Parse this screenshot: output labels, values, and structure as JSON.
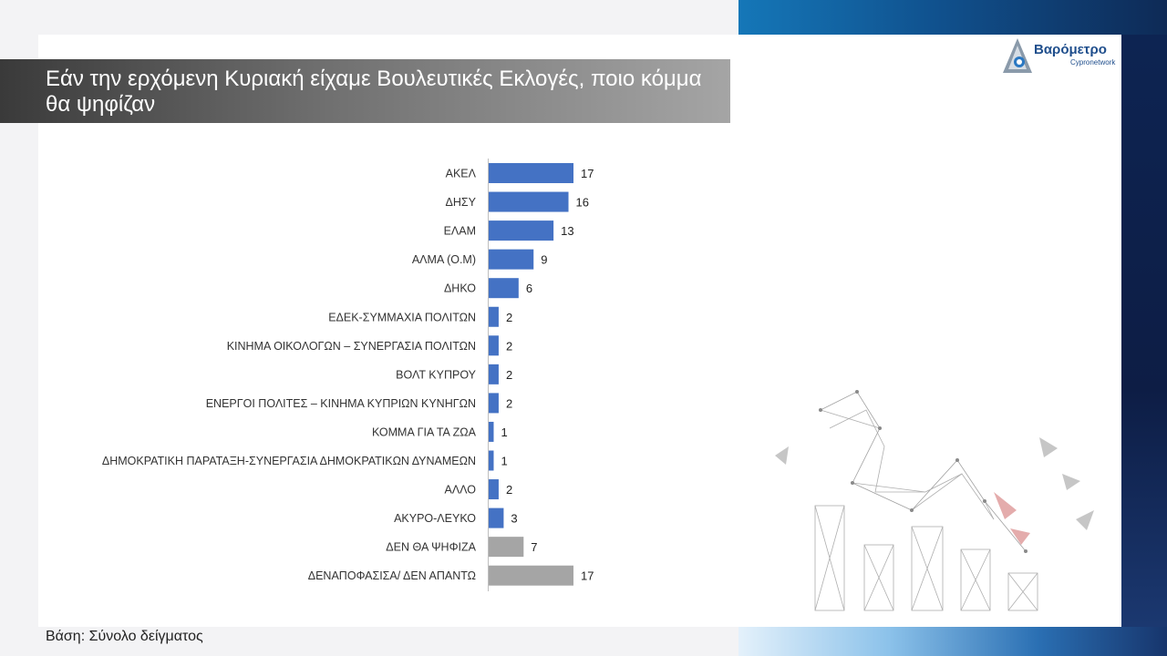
{
  "title": "Εάν την ερχόμενη Κυριακή είχαμε Βουλευτικές Εκλογές, ποιο κόμμα θα ψηφίζαν",
  "logo": {
    "name": "Βαρόμετρο",
    "sub": "Cypronetwork"
  },
  "footer": "Βάση: Σύνολο δείγματος",
  "colors": {
    "primary_bar": "#4472c4",
    "secondary_bar": "#a5a5a5"
  },
  "chart_data": {
    "type": "bar",
    "orientation": "horizontal",
    "categories": [
      "ΑΚΕΛ",
      "ΔΗΣΥ",
      "ΕΛΑΜ",
      "ΑΛΜΑ (Ο.Μ)",
      "ΔΗΚΟ",
      "ΕΔΕΚ-ΣΥΜΜΑΧΙΑ ΠΟΛΙΤΩΝ",
      "ΚΙΝΗΜΑ ΟΙΚΟΛΟΓΩΝ – ΣΥΝΕΡΓΑΣΙΑ ΠΟΛΙΤΩΝ",
      "ΒΟΛΤ ΚΥΠΡΟΥ",
      "ΕΝΕΡΓΟΙ ΠΟΛΙΤΕΣ – ΚΙΝΗΜΑ ΚΥΠΡΙΩΝ ΚΥΝΗΓΩΝ",
      "ΚΟΜΜΑ ΓΙΑ ΤΑ ΖΩΑ",
      "ΔΗΜΟΚΡΑΤΙΚΗ ΠΑΡΑΤΑΞΗ-ΣΥΝΕΡΓΑΣΙΑ ΔΗΜΟΚΡΑΤΙΚΩΝ ΔΥΝΑΜΕΩΝ",
      "ΑΛΛΟ",
      "ΑΚΥΡΟ-ΛΕΥΚΟ",
      "ΔΕΝ ΘΑ ΨΗΦΙΖΑ",
      "ΔΕΝΑΠΟΦΑΣΙΣΑ/ ΔΕΝ ΑΠΑΝΤΩ"
    ],
    "values": [
      17,
      16,
      13,
      9,
      6,
      2,
      2,
      2,
      2,
      1,
      1,
      2,
      3,
      7,
      17
    ],
    "bar_colors": [
      "blue",
      "blue",
      "blue",
      "blue",
      "blue",
      "blue",
      "blue",
      "blue",
      "blue",
      "blue",
      "blue",
      "blue",
      "blue",
      "grey",
      "grey"
    ],
    "xlim": [
      0,
      17
    ],
    "grid": false,
    "legend": "none"
  }
}
